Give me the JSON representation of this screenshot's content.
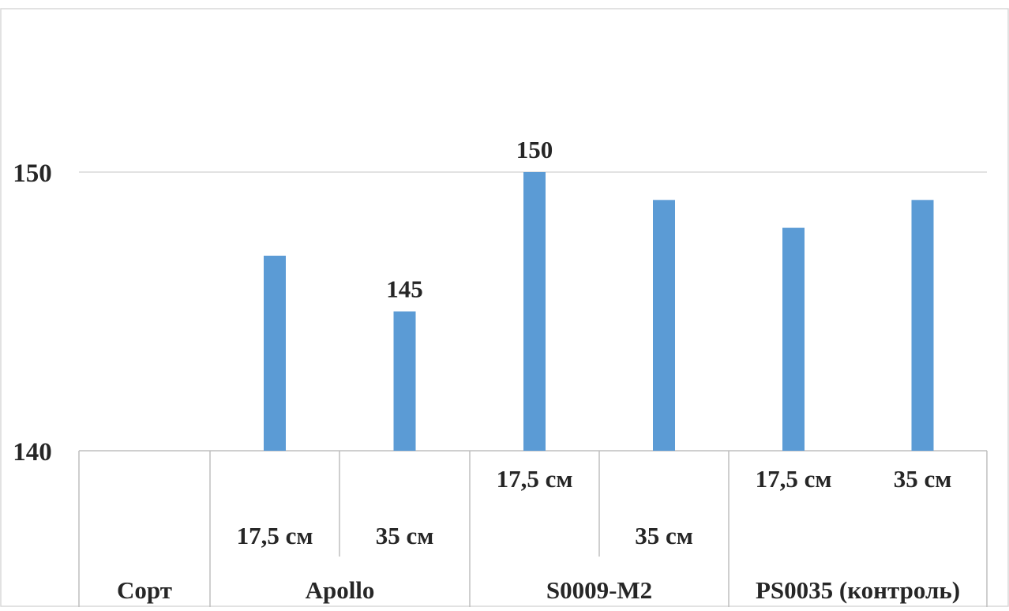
{
  "chart_data": {
    "type": "bar",
    "title": "",
    "xlabel": "",
    "ylabel": "",
    "ylim": [
      140,
      152
    ],
    "yticks": [
      140,
      150
    ],
    "grid": true,
    "legend": "none",
    "bar_color": "#5B9BD5",
    "categories": [
      {
        "group": "Apollo",
        "label": "17,5 см"
      },
      {
        "group": "Apollo",
        "label": "35 см"
      },
      {
        "group": "S0009-M2",
        "label": "17,5 см"
      },
      {
        "group": "S0009-M2",
        "label": "35 см"
      },
      {
        "group": "PS0035 (контроль)",
        "label": "17,5 см"
      },
      {
        "group": "PS0035 (контроль)",
        "label": "35 см"
      }
    ],
    "values": [
      147,
      145,
      150,
      149,
      148,
      149
    ],
    "data_labels": [
      "",
      "145",
      "150",
      "",
      "",
      ""
    ],
    "row_header": "Сорт",
    "groups": [
      "Apollo",
      "S0009-M2",
      "PS0035 (контроль)"
    ]
  }
}
